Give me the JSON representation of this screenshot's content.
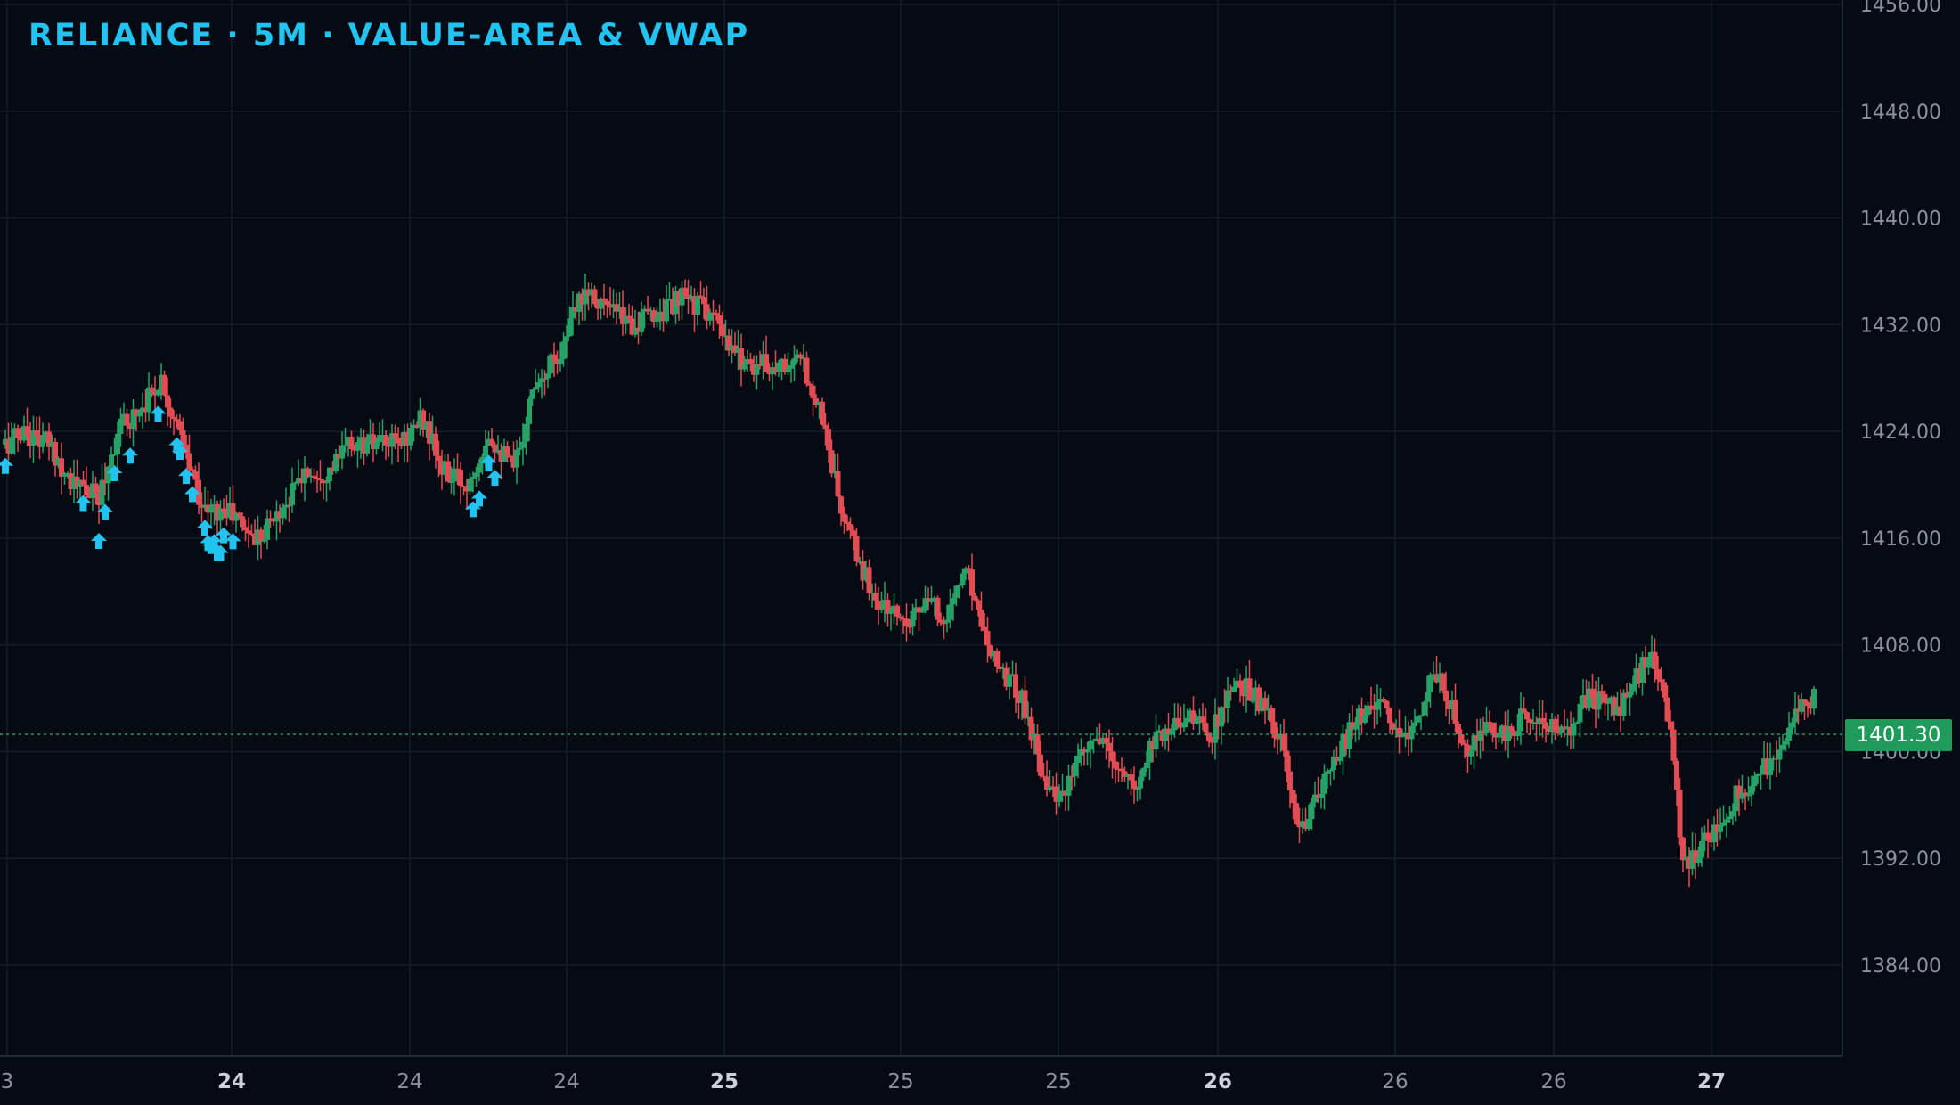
{
  "title": "RELIANCE · 5M · VALUE-AREA & VWAP",
  "last_price_label": "1401.30",
  "colors": {
    "background": "#060a12",
    "grid": "#141d28",
    "axis_text": "#8a93a1",
    "up": "#26a269",
    "down": "#e24d55",
    "signal": "#22c3f0",
    "last_price_line": "#26a269"
  },
  "chart_data": {
    "type": "candlestick",
    "title": "RELIANCE · 5M · VALUE-AREA & VWAP",
    "y_axis": {
      "position": "right",
      "ticks": [
        1384,
        1392,
        1400,
        1408,
        1416,
        1424,
        1432,
        1440,
        1448,
        1456
      ],
      "tick_labels": [
        "1384.00",
        "1392.00",
        "1400.00",
        "1408.00",
        "1416.00",
        "1424.00",
        "1432.00",
        "1440.00",
        "1448.00",
        "1456.00"
      ],
      "range": [
        1378,
        1456
      ]
    },
    "x_axis": {
      "ticks": [
        {
          "label": "3",
          "bold": false
        },
        {
          "label": "24",
          "bold": true
        },
        {
          "label": "24",
          "bold": false
        },
        {
          "label": "24",
          "bold": false
        },
        {
          "label": "25",
          "bold": true
        },
        {
          "label": "25",
          "bold": false
        },
        {
          "label": "25",
          "bold": false
        },
        {
          "label": "26",
          "bold": true
        },
        {
          "label": "26",
          "bold": false
        },
        {
          "label": "26",
          "bold": false
        },
        {
          "label": "27",
          "bold": true
        }
      ]
    },
    "last_price": 1401.3,
    "grid": true,
    "series_path": [
      [
        0,
        1423
      ],
      [
        6,
        1424
      ],
      [
        14,
        1423
      ],
      [
        22,
        1420
      ],
      [
        30,
        1419
      ],
      [
        36,
        1424
      ],
      [
        44,
        1426
      ],
      [
        50,
        1428
      ],
      [
        58,
        1422
      ],
      [
        64,
        1418
      ],
      [
        72,
        1418
      ],
      [
        80,
        1416
      ],
      [
        88,
        1418
      ],
      [
        96,
        1421
      ],
      [
        104,
        1421
      ],
      [
        110,
        1423
      ],
      [
        118,
        1423
      ],
      [
        126,
        1423
      ],
      [
        134,
        1425
      ],
      [
        140,
        1421
      ],
      [
        148,
        1420
      ],
      [
        155,
        1424
      ],
      [
        163,
        1421
      ],
      [
        170,
        1428
      ],
      [
        178,
        1430
      ],
      [
        186,
        1435
      ],
      [
        194,
        1433
      ],
      [
        202,
        1432
      ],
      [
        210,
        1433
      ],
      [
        218,
        1434
      ],
      [
        226,
        1433
      ],
      [
        232,
        1430
      ],
      [
        240,
        1429
      ],
      [
        248,
        1429
      ],
      [
        256,
        1429
      ],
      [
        262,
        1425
      ],
      [
        268,
        1418
      ],
      [
        274,
        1414
      ],
      [
        280,
        1411
      ],
      [
        288,
        1410
      ],
      [
        296,
        1411
      ],
      [
        302,
        1410
      ],
      [
        308,
        1414
      ],
      [
        314,
        1409
      ],
      [
        320,
        1406
      ],
      [
        326,
        1404
      ],
      [
        332,
        1399
      ],
      [
        338,
        1396
      ],
      [
        344,
        1399
      ],
      [
        350,
        1401
      ],
      [
        356,
        1399
      ],
      [
        362,
        1397
      ],
      [
        368,
        1401
      ],
      [
        374,
        1402
      ],
      [
        380,
        1403
      ],
      [
        386,
        1401
      ],
      [
        392,
        1404
      ],
      [
        398,
        1405
      ],
      [
        404,
        1403
      ],
      [
        410,
        1400
      ],
      [
        414,
        1394
      ],
      [
        420,
        1396
      ],
      [
        426,
        1399
      ],
      [
        432,
        1402
      ],
      [
        440,
        1404
      ],
      [
        446,
        1401
      ],
      [
        452,
        1402
      ],
      [
        458,
        1406
      ],
      [
        464,
        1403
      ],
      [
        470,
        1400
      ],
      [
        476,
        1402
      ],
      [
        482,
        1401
      ],
      [
        488,
        1403
      ],
      [
        494,
        1402
      ],
      [
        500,
        1401
      ],
      [
        506,
        1404
      ],
      [
        512,
        1404
      ],
      [
        518,
        1403
      ],
      [
        524,
        1406
      ],
      [
        528,
        1407
      ],
      [
        534,
        1402
      ],
      [
        538,
        1391
      ],
      [
        544,
        1393
      ],
      [
        550,
        1395
      ],
      [
        556,
        1397
      ],
      [
        562,
        1398
      ],
      [
        568,
        1400
      ],
      [
        574,
        1403
      ],
      [
        580,
        1404
      ]
    ],
    "signal_arrows_below_bars": [
      0,
      25,
      30,
      32,
      35,
      40,
      49,
      55,
      56,
      58,
      60,
      64,
      65,
      66,
      67,
      68,
      69,
      70,
      73,
      150,
      152,
      155,
      157
    ]
  }
}
